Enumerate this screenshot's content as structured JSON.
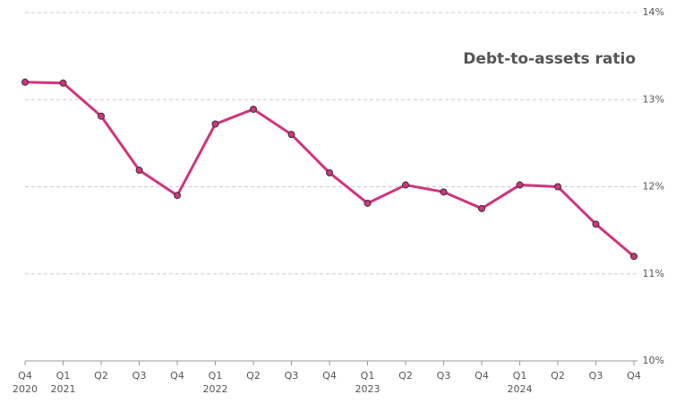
{
  "chart_data": {
    "type": "line",
    "title": "Debt-to-assets ratio",
    "categories": [
      "Q4",
      "Q1",
      "Q2",
      "Q3",
      "Q4",
      "Q1",
      "Q2",
      "Q3",
      "Q4",
      "Q1",
      "Q2",
      "Q3",
      "Q4",
      "Q1",
      "Q2",
      "Q3",
      "Q4"
    ],
    "category_years": [
      "2020",
      "2021",
      null,
      null,
      null,
      "2022",
      null,
      null,
      null,
      "2023",
      null,
      null,
      null,
      "2024",
      null,
      null,
      null
    ],
    "series": [
      {
        "name": "Debt-to-assets ratio",
        "color": "#d0347f",
        "values": [
          13.2,
          13.19,
          12.81,
          12.19,
          11.9,
          12.72,
          12.89,
          12.6,
          12.16,
          11.81,
          12.02,
          11.94,
          11.75,
          12.02,
          12.0,
          11.57,
          11.2
        ]
      }
    ],
    "ylim": [
      10,
      14
    ],
    "yticks": [
      {
        "value": 10,
        "label": "10%"
      },
      {
        "value": 11,
        "label": "11%"
      },
      {
        "value": 12,
        "label": "12%"
      },
      {
        "value": 13,
        "label": "13%"
      },
      {
        "value": 14,
        "label": "14%"
      }
    ],
    "grid": true
  }
}
